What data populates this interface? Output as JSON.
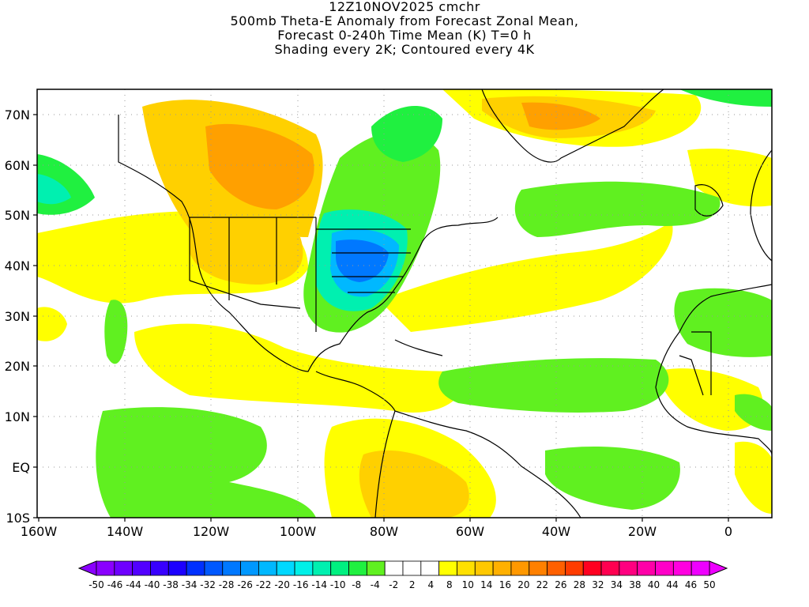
{
  "title": {
    "lines": [
      "12Z10NOV2025 cmchr",
      "500mb Theta-E Anomaly from Forecast Zonal Mean,",
      "Forecast 0-240h Time Mean (K) T=0 h",
      "Shading every 2K; Contoured every 4K"
    ]
  },
  "axes": {
    "lat_labels": [
      "70N",
      "60N",
      "50N",
      "40N",
      "30N",
      "20N",
      "10N",
      "EQ",
      "10S"
    ],
    "lon_labels": [
      "160W",
      "140W",
      "120W",
      "100W",
      "80W",
      "60W",
      "40W",
      "20W",
      "0"
    ]
  },
  "colorbar": {
    "labels": [
      "-50",
      "-46",
      "-44",
      "-40",
      "-38",
      "-34",
      "-32",
      "-28",
      "-26",
      "-22",
      "-20",
      "-16",
      "-14",
      "-10",
      "-8",
      "-4",
      "-2",
      "2",
      "4",
      "8",
      "10",
      "14",
      "16",
      "20",
      "22",
      "26",
      "28",
      "32",
      "34",
      "38",
      "40",
      "44",
      "46",
      "50"
    ],
    "colors": [
      "#8a00ff",
      "#6e00ff",
      "#5200ff",
      "#3800ff",
      "#1c00ff",
      "#0030ff",
      "#0058ff",
      "#0078ff",
      "#0098ff",
      "#00b8ff",
      "#00d8ff",
      "#00f0e8",
      "#00f0b0",
      "#00f080",
      "#20f040",
      "#60f020",
      "#ffffff",
      "#ffffff",
      "#ffffff",
      "#ffff00",
      "#ffe000",
      "#ffc800",
      "#ffb000",
      "#ff9800",
      "#ff8000",
      "#ff6000",
      "#ff3c00",
      "#ff0020",
      "#ff0050",
      "#ff0080",
      "#ff00a8",
      "#ff00c8",
      "#ff00e0",
      "#ee00ff"
    ]
  },
  "legend_colors": {
    "green": "#60f020",
    "cyan": "#00d8ff",
    "blue": "#0070ff",
    "yellow": "#ffff00",
    "gold": "#ffd000",
    "orange": "#ffa000",
    "white": "#ffffff"
  }
}
